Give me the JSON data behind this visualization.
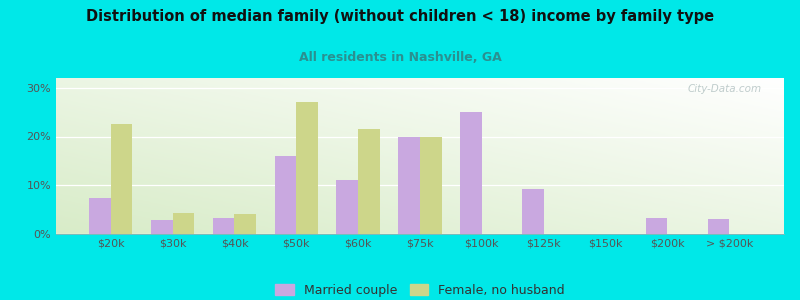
{
  "title": "Distribution of median family (without children < 18) income by family type",
  "subtitle": "All residents in Nashville, GA",
  "categories": [
    "$20k",
    "$30k",
    "$40k",
    "$50k",
    "$60k",
    "$75k",
    "$100k",
    "$125k",
    "$150k",
    "$200k",
    "> $200k"
  ],
  "married_couple": [
    7.3,
    2.8,
    3.2,
    16.0,
    11.0,
    20.0,
    25.0,
    9.2,
    0.0,
    3.2,
    3.0
  ],
  "female_no_husband": [
    22.5,
    4.3,
    4.2,
    27.0,
    21.5,
    20.0,
    0.0,
    0.0,
    0.0,
    0.0,
    0.0
  ],
  "married_color": "#c9a8e0",
  "female_color": "#cdd68a",
  "bg_outer": "#00e8e8",
  "title_color": "#111111",
  "subtitle_color": "#2a9090",
  "axis_label_color": "#555555",
  "legend_label_color": "#333333",
  "ylim": [
    0,
    32
  ],
  "yticks": [
    0,
    10,
    20,
    30
  ],
  "bar_width": 0.35,
  "watermark": "City-Data.com"
}
